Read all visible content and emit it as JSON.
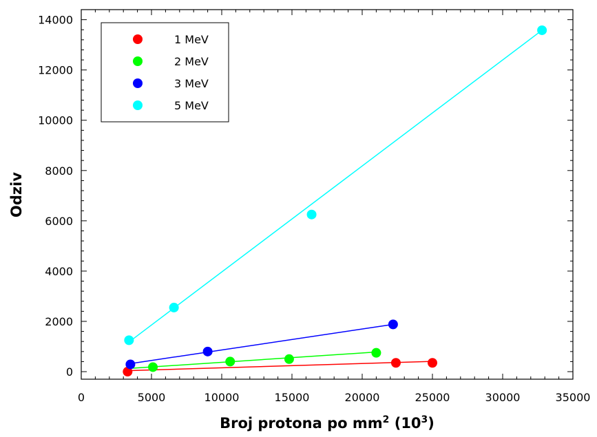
{
  "chart_data": {
    "type": "scatter",
    "xlabel": "Broj protona po mm",
    "xlabel_sup": "2",
    "xlabel_suffix": " (10",
    "xlabel_suffix_sup": "3",
    "xlabel_end": ")",
    "ylabel": "Odziv",
    "xlim": [
      0,
      35000
    ],
    "ylim": [
      -300,
      14400
    ],
    "xticks": [
      0,
      5000,
      10000,
      15000,
      20000,
      25000,
      30000,
      35000
    ],
    "yticks": [
      0,
      2000,
      4000,
      6000,
      8000,
      10000,
      12000,
      14000
    ],
    "grid": false,
    "legend_position": "top-left",
    "series": [
      {
        "name": "1 MeV",
        "color": "#ff0000",
        "points": [
          [
            3300,
            0
          ],
          [
            22400,
            350
          ],
          [
            25000,
            350
          ]
        ],
        "fit": [
          [
            3300,
            40
          ],
          [
            25000,
            410
          ]
        ]
      },
      {
        "name": "2 MeV",
        "color": "#00ff00",
        "points": [
          [
            5100,
            180
          ],
          [
            10600,
            400
          ],
          [
            14800,
            500
          ],
          [
            21000,
            750
          ]
        ],
        "fit": [
          [
            3200,
            120
          ],
          [
            21000,
            780
          ]
        ]
      },
      {
        "name": "3 MeV",
        "color": "#0000ff",
        "points": [
          [
            3500,
            290
          ],
          [
            9000,
            800
          ],
          [
            22200,
            1880
          ]
        ],
        "fit": [
          [
            3500,
            320
          ],
          [
            22200,
            1880
          ]
        ]
      },
      {
        "name": "5 MeV",
        "color": "#00ffff",
        "points": [
          [
            3400,
            1250
          ],
          [
            6600,
            2550
          ],
          [
            16400,
            6250
          ],
          [
            32800,
            13580
          ]
        ],
        "fit": [
          [
            3400,
            1180
          ],
          [
            32800,
            13580
          ]
        ]
      }
    ]
  }
}
